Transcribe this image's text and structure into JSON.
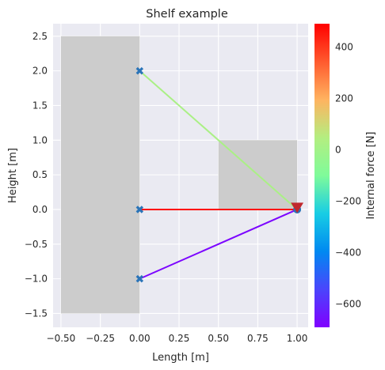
{
  "chart_data": {
    "type": "line",
    "title": "Shelf example",
    "xlabel": "Length [m]",
    "ylabel": "Height [m]",
    "xlim": [
      -0.55,
      1.07
    ],
    "ylim": [
      -1.7,
      2.68
    ],
    "x_ticks": [
      {
        "value": -0.5,
        "label": "−0.50"
      },
      {
        "value": -0.25,
        "label": "−0.25"
      },
      {
        "value": 0.0,
        "label": "0.00"
      },
      {
        "value": 0.25,
        "label": "0.25"
      },
      {
        "value": 0.5,
        "label": "0.50"
      },
      {
        "value": 0.75,
        "label": "0.75"
      },
      {
        "value": 1.0,
        "label": "1.00"
      }
    ],
    "y_ticks": [
      {
        "value": -1.5,
        "label": "−1.5"
      },
      {
        "value": -1.0,
        "label": "−1.0"
      },
      {
        "value": -0.5,
        "label": "−0.5"
      },
      {
        "value": 0.0,
        "label": "0.0"
      },
      {
        "value": 0.5,
        "label": "0.5"
      },
      {
        "value": 1.0,
        "label": "1.0"
      },
      {
        "value": 1.5,
        "label": "1.5"
      },
      {
        "value": 2.0,
        "label": "2.0"
      },
      {
        "value": 2.5,
        "label": "2.5"
      }
    ],
    "grid": true,
    "rectangles": [
      {
        "x0": -0.5,
        "x1": 0.0,
        "y0": -1.5,
        "y1": 2.5,
        "color": "#cccccc"
      },
      {
        "x0": 0.5,
        "x1": 1.0,
        "y0": 0.0,
        "y1": 1.0,
        "color": "#cccccc"
      }
    ],
    "members": [
      {
        "x": [
          0.0,
          1.0
        ],
        "y": [
          2.0,
          0.0
        ],
        "force": 20
      },
      {
        "x": [
          0.0,
          1.0
        ],
        "y": [
          0.0,
          0.0
        ],
        "force": 480
      },
      {
        "x": [
          0.0,
          1.0
        ],
        "y": [
          -1.0,
          0.0
        ],
        "force": -680
      }
    ],
    "supports": [
      {
        "x": 0.0,
        "y": 2.0,
        "marker": "x"
      },
      {
        "x": 0.0,
        "y": 0.0,
        "marker": "x"
      },
      {
        "x": 0.0,
        "y": -1.0,
        "marker": "x"
      }
    ],
    "joint": {
      "x": 1.0,
      "y": 0.0,
      "marker": "circle"
    },
    "load": {
      "x": 1.0,
      "y": 0.03,
      "marker": "triangle-down",
      "color": "#c0282d"
    },
    "colorbar": {
      "label": "Internal force [N]",
      "range": [
        -690,
        490
      ],
      "colormap": "rainbow",
      "ticks": [
        {
          "value": -600,
          "label": "−600"
        },
        {
          "value": -400,
          "label": "−400"
        },
        {
          "value": -200,
          "label": "−200"
        },
        {
          "value": 0,
          "label": "0"
        },
        {
          "value": 200,
          "label": "200"
        },
        {
          "value": 400,
          "label": "400"
        }
      ]
    },
    "colors": {
      "axes_background": "#eaeaf2",
      "grid": "#ffffff",
      "marker": "#2a74b8"
    }
  }
}
